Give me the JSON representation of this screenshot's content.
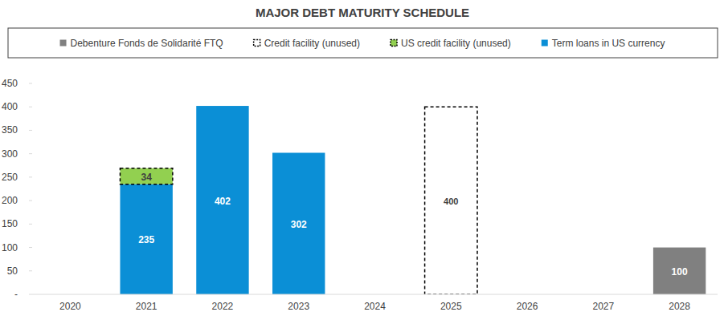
{
  "chart_data": {
    "type": "bar",
    "title": "MAJOR DEBT MATURITY SCHEDULE",
    "categories": [
      "2020",
      "2021",
      "2022",
      "2023",
      "2024",
      "2025",
      "2026",
      "2027",
      "2028"
    ],
    "series": [
      {
        "name": "Debenture Fonds de Solidarité FTQ",
        "color": "#808080",
        "line_style": "solid",
        "values": [
          null,
          null,
          null,
          null,
          null,
          null,
          null,
          null,
          100
        ]
      },
      {
        "name": "Credit facility (unused)",
        "color": "#ffffff",
        "line_style": "dashed",
        "values": [
          null,
          null,
          null,
          null,
          null,
          400,
          null,
          null,
          null
        ]
      },
      {
        "name": "US credit facility (unused)",
        "color": "#92d050",
        "line_style": "dashed",
        "values": [
          null,
          34,
          null,
          null,
          null,
          null,
          null,
          null,
          null
        ]
      },
      {
        "name": "Term loans in US currency",
        "color": "#0b8fd6",
        "line_style": "solid",
        "values": [
          null,
          235,
          402,
          302,
          null,
          null,
          null,
          null,
          null
        ]
      }
    ],
    "ylim": [
      0,
      450
    ],
    "yticks": [
      {
        "value": 0,
        "label": "-"
      },
      50,
      100,
      150,
      200,
      250,
      300,
      350,
      400,
      450
    ],
    "stacked": true,
    "data_labels": true,
    "grid": false,
    "legend": "top"
  }
}
